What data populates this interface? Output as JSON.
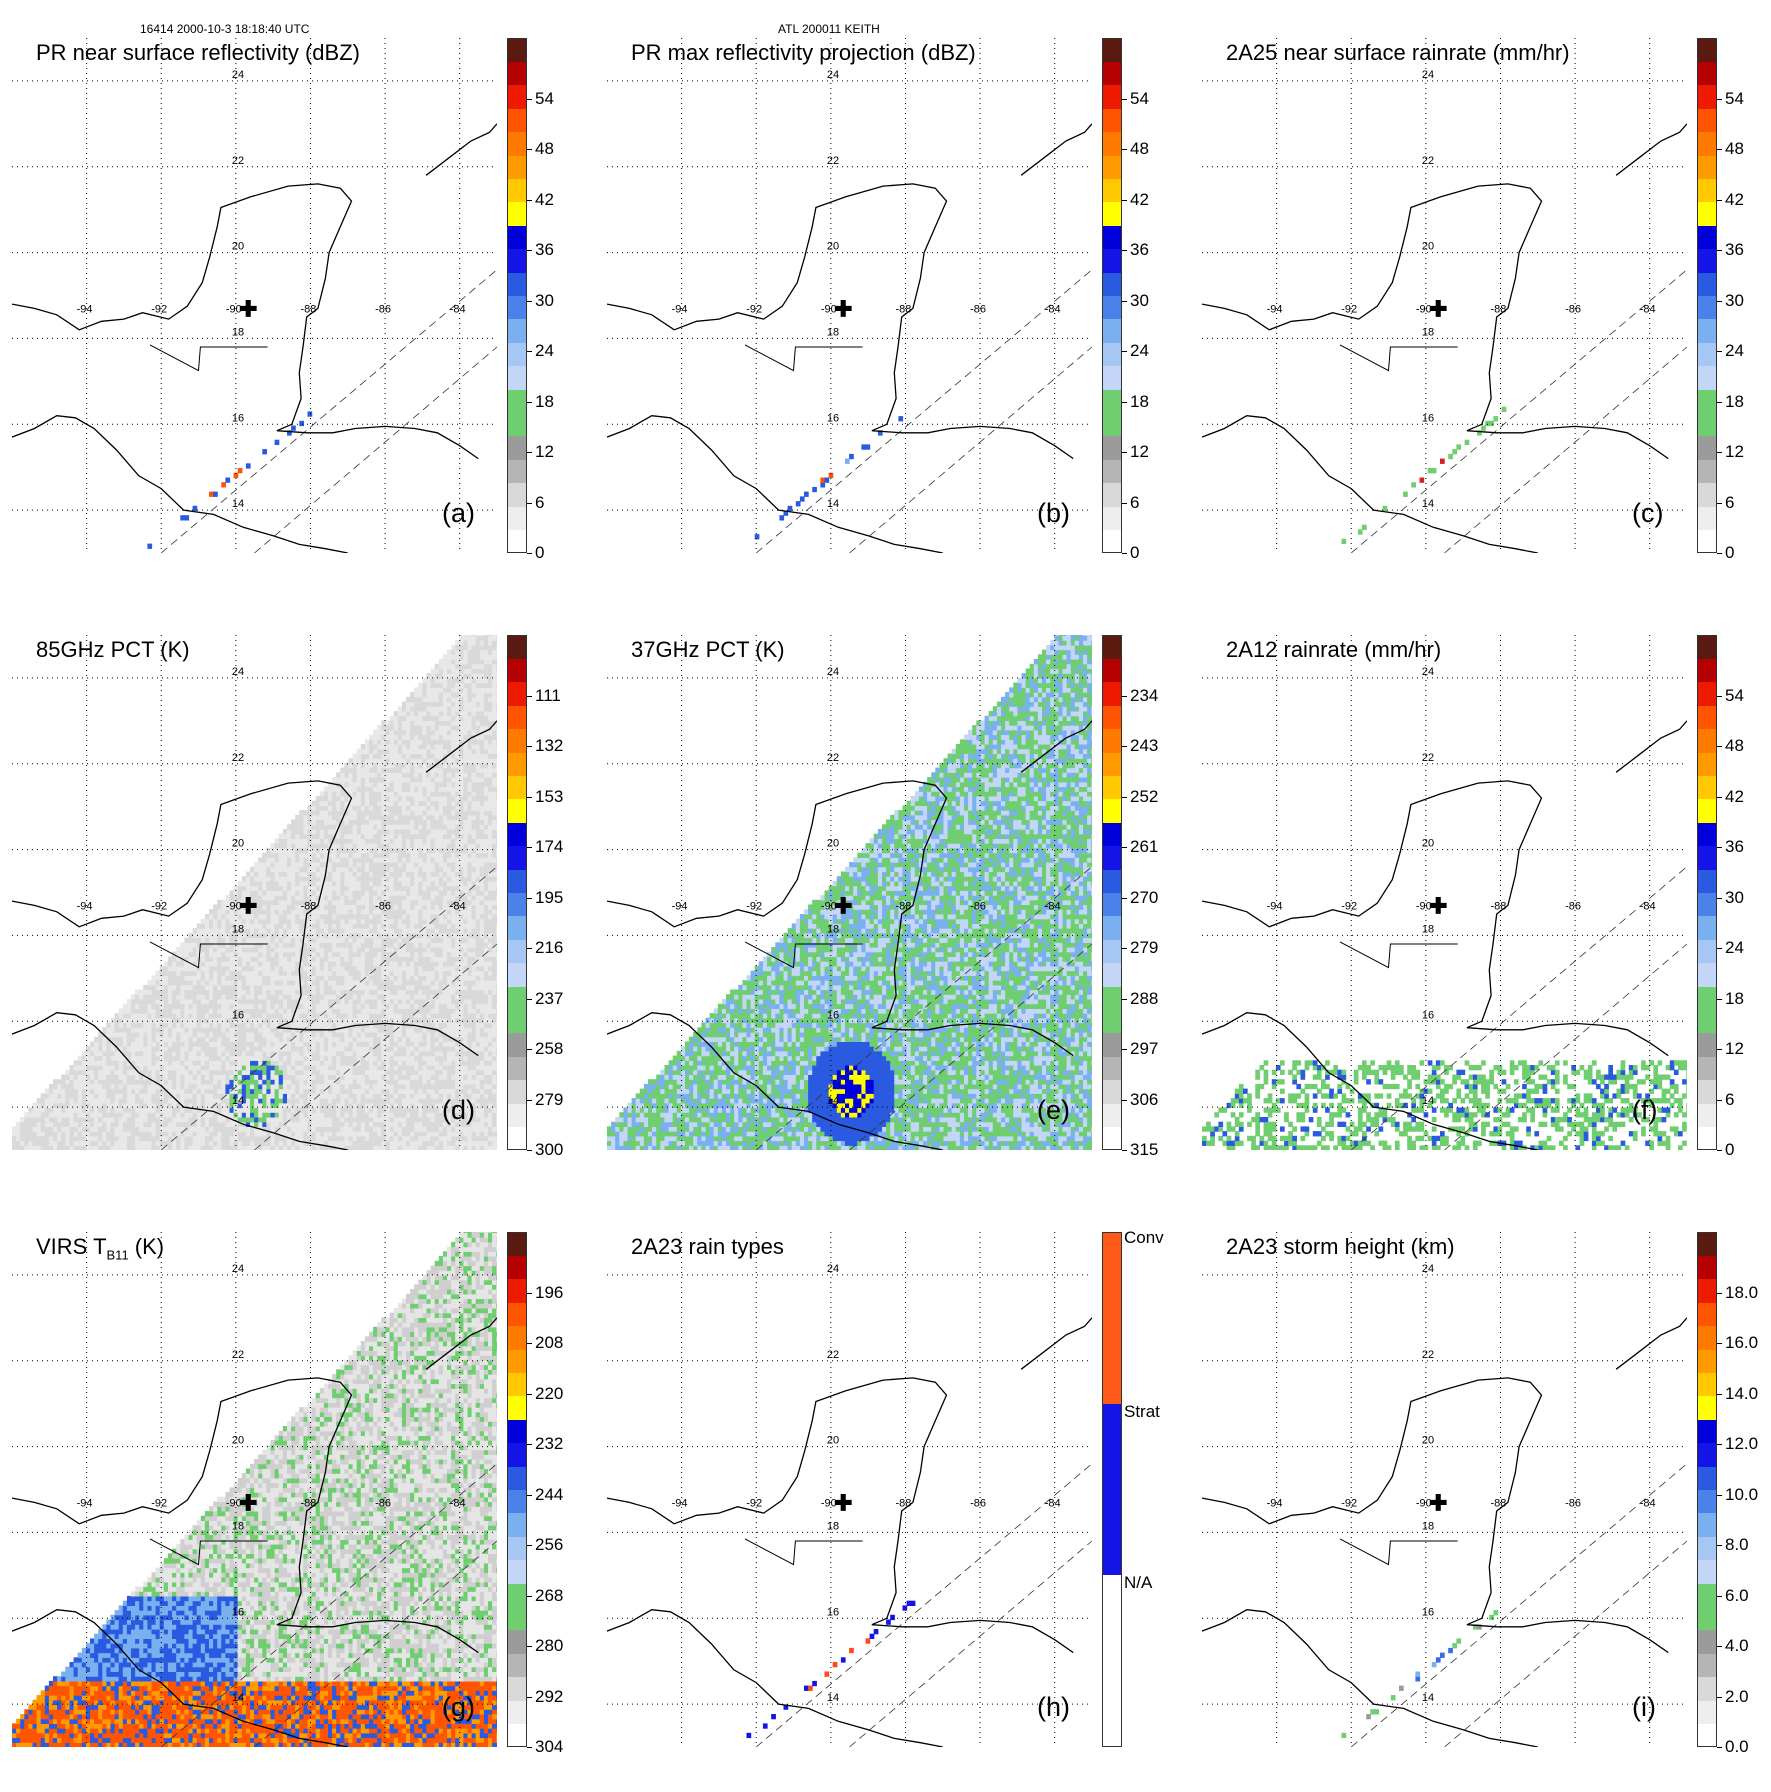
{
  "header": {
    "left": "16414 2000-10-3 18:18:40 UTC",
    "center": "ATL 200011 KEITH"
  },
  "map": {
    "lon_labels": [
      "-94",
      "-92",
      "-90",
      "-88",
      "-86",
      "-84"
    ],
    "lat_labels_row1": [
      "22",
      "20",
      "18",
      "16"
    ],
    "lat_labels_full": [
      "24",
      "22",
      "20",
      "18",
      "16",
      "14"
    ]
  },
  "panels": [
    {
      "id": "a",
      "title": "PR near surface reflectivity (dBZ)",
      "label": "(a)",
      "ticks": [
        "0",
        "6",
        "12",
        "18",
        "24",
        "30",
        "36",
        "42",
        "48",
        "54"
      ],
      "field": "pr"
    },
    {
      "id": "b",
      "title": "PR max reflectivity projection (dBZ)",
      "label": "(b)",
      "ticks": [
        "0",
        "6",
        "12",
        "18",
        "24",
        "30",
        "36",
        "42",
        "48",
        "54"
      ],
      "field": "prmax"
    },
    {
      "id": "c",
      "title": "2A25 near surface rainrate (mm/hr)",
      "label": "(c)",
      "ticks": [
        "0",
        "6",
        "12",
        "18",
        "24",
        "30",
        "36",
        "42",
        "48",
        "54"
      ],
      "field": "rain25"
    },
    {
      "id": "d",
      "title": "85GHz PCT (K)",
      "label": "(d)",
      "ticks": [
        "300",
        "279",
        "258",
        "237",
        "216",
        "195",
        "174",
        "153",
        "132",
        "111"
      ],
      "field": "pct85"
    },
    {
      "id": "e",
      "title": "37GHz PCT (K)",
      "label": "(e)",
      "ticks": [
        "315",
        "306",
        "297",
        "288",
        "279",
        "270",
        "261",
        "252",
        "243",
        "234"
      ],
      "field": "pct37"
    },
    {
      "id": "f",
      "title": "2A12 rainrate (mm/hr)",
      "label": "(f)",
      "ticks": [
        "0",
        "6",
        "12",
        "18",
        "24",
        "30",
        "36",
        "42",
        "48",
        "54"
      ],
      "field": "rain12"
    },
    {
      "id": "g",
      "title_main": "VIRS T",
      "title_sub": "B11",
      "title_end": " (K)",
      "label": "(g)",
      "ticks": [
        "304",
        "292",
        "280",
        "268",
        "256",
        "244",
        "232",
        "220",
        "208",
        "196"
      ],
      "field": "virs"
    },
    {
      "id": "h",
      "title": "2A23 rain types",
      "label": "(h)",
      "ticks": [
        "N/A",
        "Strat",
        "Conv"
      ],
      "field": "types"
    },
    {
      "id": "i",
      "title": "2A23 storm height (km)",
      "label": "(i)",
      "ticks": [
        "0.0",
        "2.0",
        "4.0",
        "6.0",
        "8.0",
        "10.0",
        "12.0",
        "14.0",
        "16.0",
        "18.0"
      ],
      "field": "height"
    }
  ],
  "chart_data": {
    "type": "heatmap",
    "title": "16414 2000-10-3 18:18:40 UTC — ATL 200011 KEITH",
    "x_range_lon": [
      -96,
      -83
    ],
    "y_range_lat": [
      13,
      25
    ],
    "colorscale": [
      "#ffffff",
      "#d9d9d9",
      "#9b9b9b",
      "#6fce6f",
      "#c4d6f7",
      "#7ab0f0",
      "#2a5ae0",
      "#0000dd",
      "#ffff00",
      "#ff9a00",
      "#ff5500",
      "#ee1a00",
      "#b40000",
      "#5a1a10"
    ],
    "color_accent": "#ff5a1a",
    "color_blue": "#1414e6"
  }
}
